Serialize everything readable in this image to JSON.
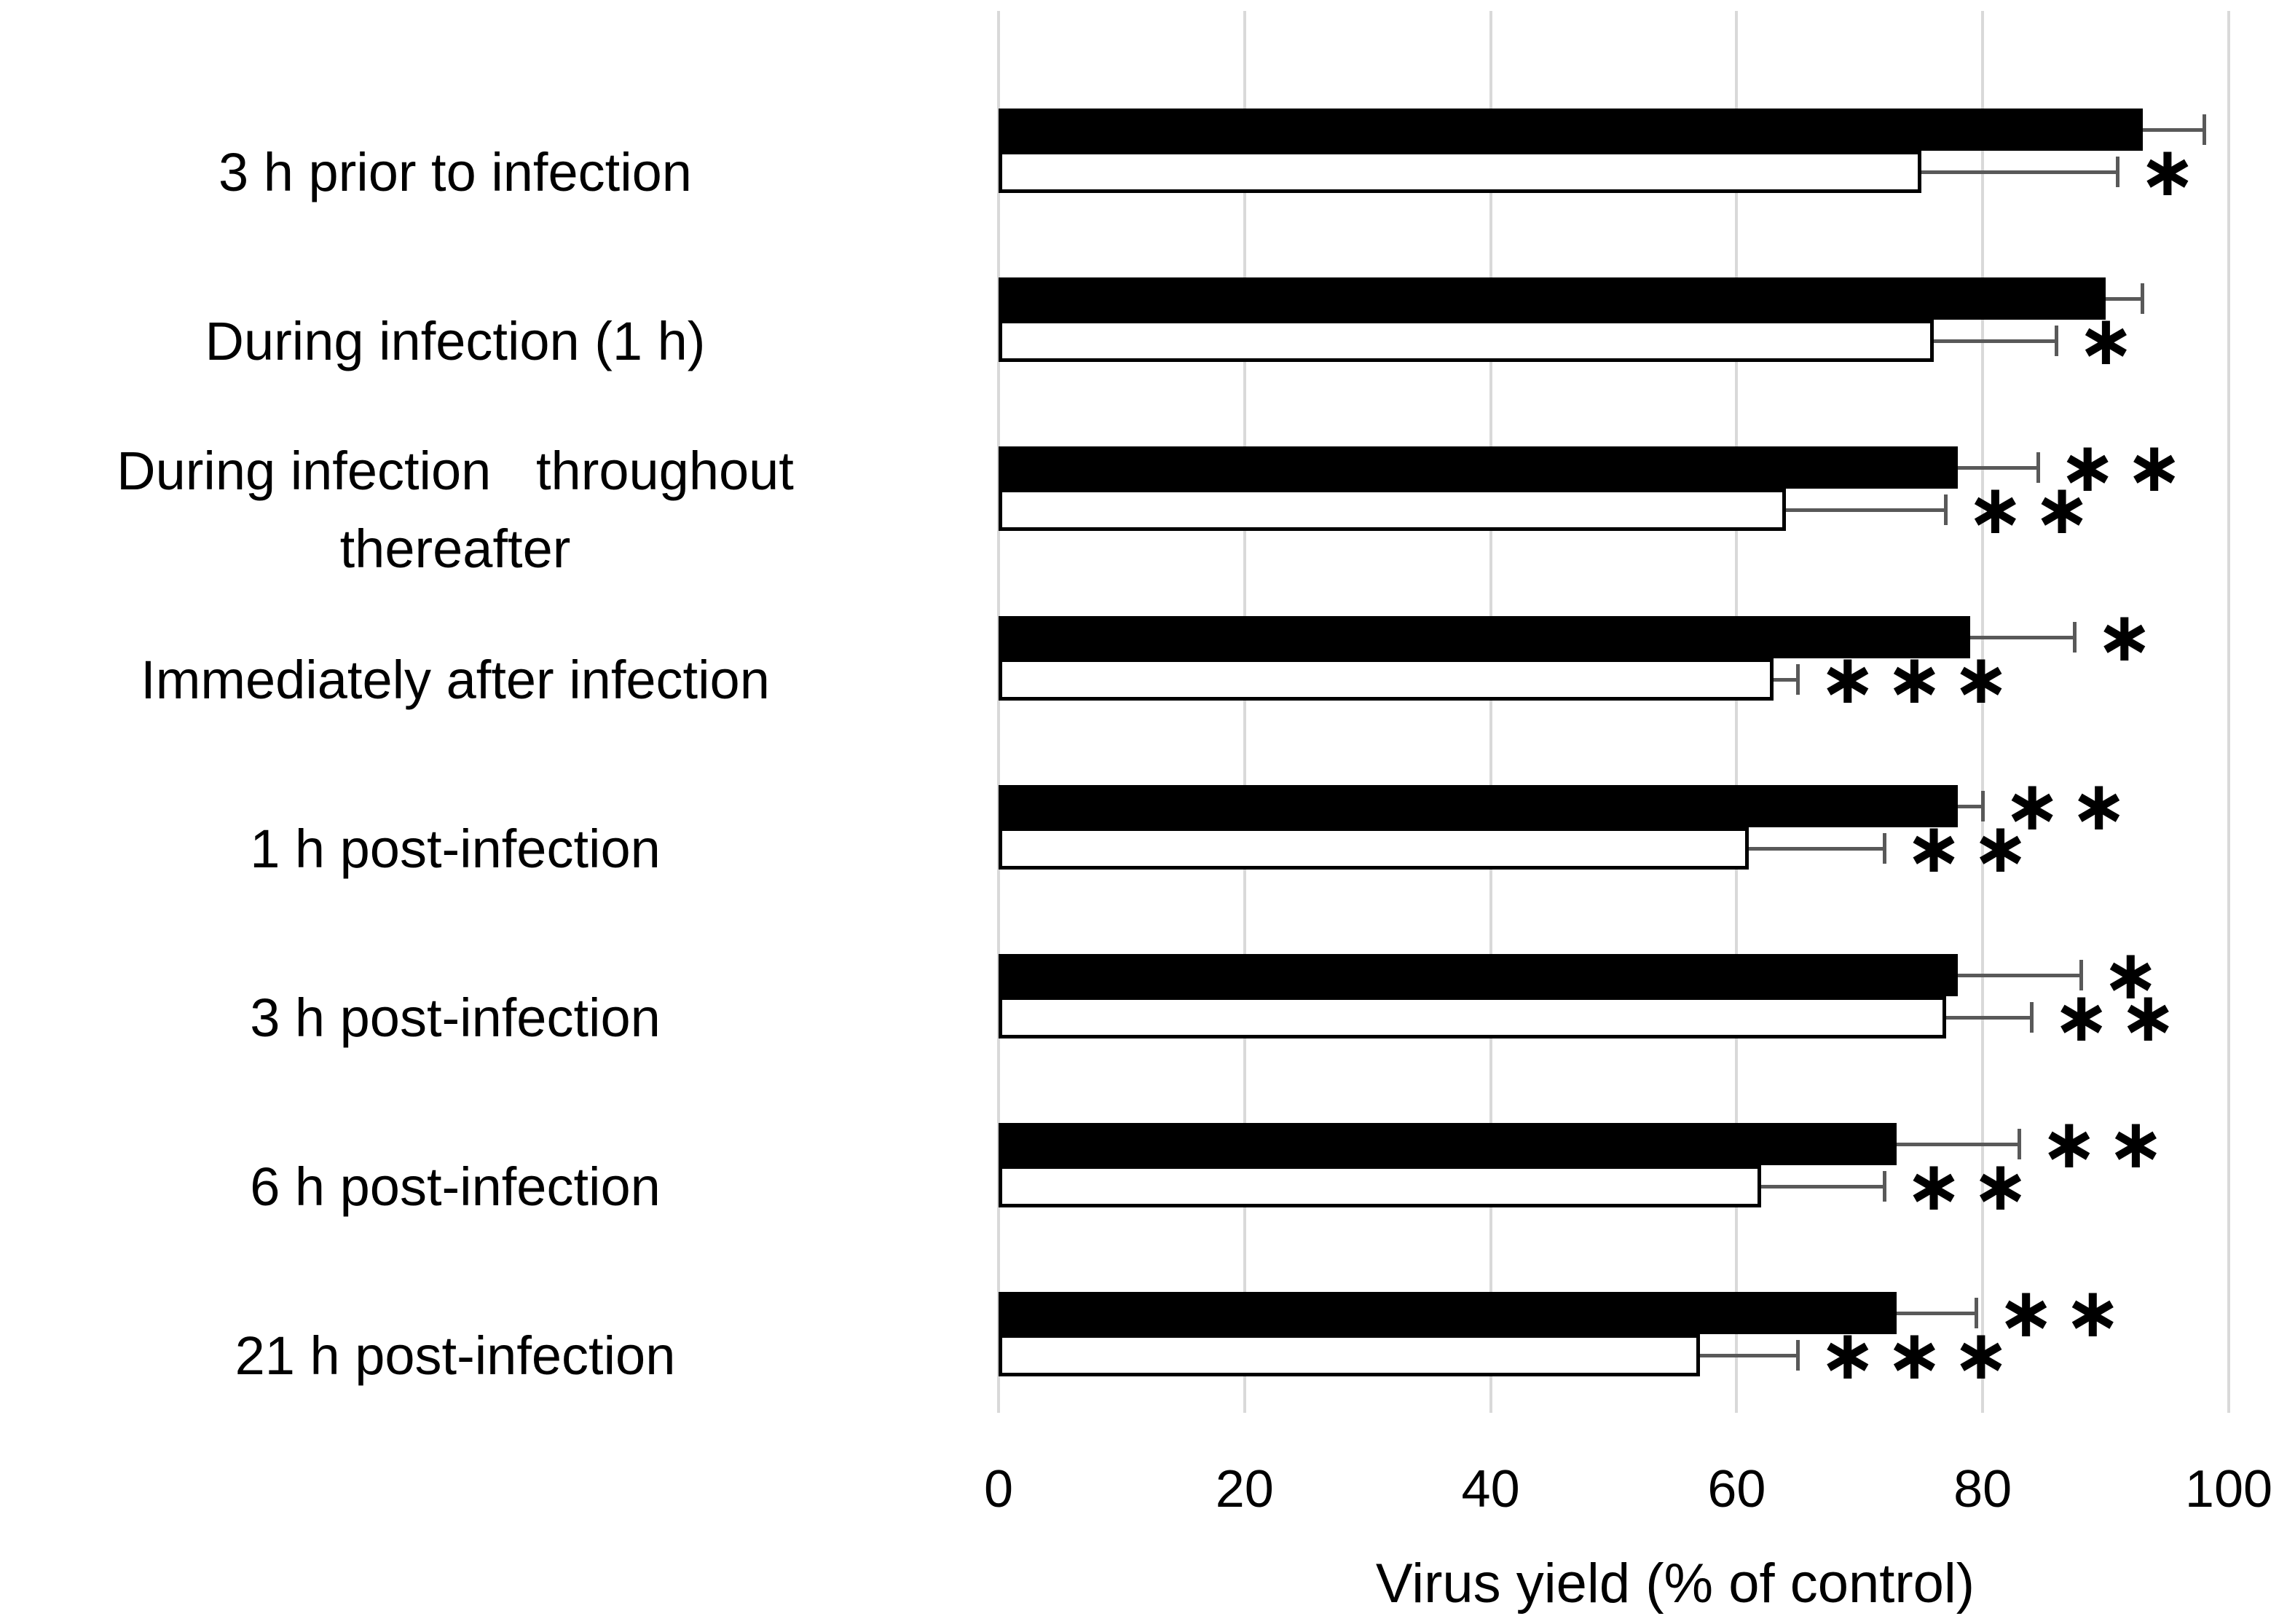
{
  "chart_data": {
    "type": "bar",
    "orientation": "horizontal",
    "title": "",
    "xlabel": "Virus yield (% of control)",
    "xlim": [
      0,
      100
    ],
    "xticks": [
      0,
      20,
      40,
      60,
      80,
      100
    ],
    "grid": "vertical-light-gray",
    "legend": "none",
    "categories": [
      "3 h prior to infection",
      "During infection (1 h)",
      "During infection   throughout\nthereafter",
      "Immediately after infection",
      "1 h post-infection",
      "3 h post-infection",
      "6 h post-infection",
      "21 h post-infection"
    ],
    "series": [
      {
        "name": "black-bars",
        "fill": "#000000",
        "values": [
          93,
          90,
          78,
          79,
          78,
          78,
          73,
          73
        ],
        "error_upper": [
          5,
          3,
          6.5,
          8.5,
          2,
          10,
          10,
          6.5
        ],
        "significance": [
          "",
          "",
          "**",
          "*",
          "**",
          "*",
          "**",
          "**"
        ]
      },
      {
        "name": "white-bars",
        "fill": "#ffffff",
        "values": [
          75,
          76,
          64,
          63,
          61,
          77,
          62,
          57
        ],
        "error_upper": [
          16,
          10,
          13,
          2,
          11,
          7,
          10,
          8
        ],
        "significance": [
          "*",
          "*",
          "**",
          "***",
          "**",
          "**",
          "**",
          "***"
        ]
      }
    ],
    "annotation_symbol": "asterisk"
  },
  "colors": {
    "bar_black": "#000000",
    "bar_white_fill": "#ffffff",
    "bar_border": "#000000",
    "error_bar": "#595959",
    "gridline": "#d9d9d9",
    "text": "#000000"
  }
}
